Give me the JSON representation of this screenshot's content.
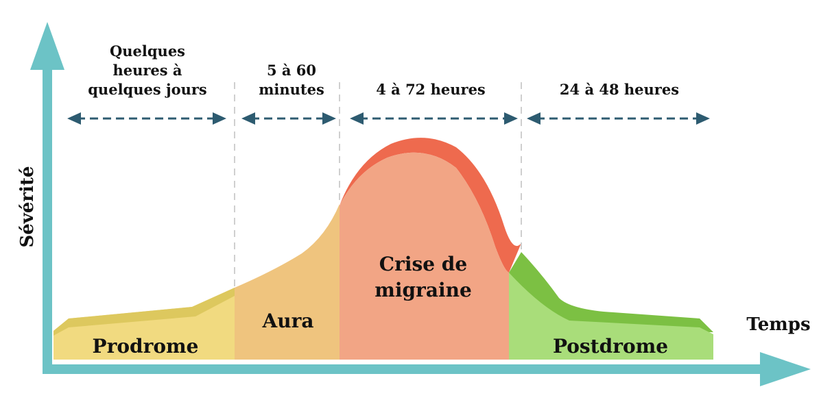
{
  "axes": {
    "y": "Sévérité",
    "x": "Temps"
  },
  "phases": [
    {
      "name": [
        "Prodrome"
      ],
      "duration": [
        "Quelques",
        "heures à",
        "quelques jours"
      ]
    },
    {
      "name": [
        "Aura"
      ],
      "duration": [
        "5 à 60",
        "minutes"
      ]
    },
    {
      "name": [
        "Crise de",
        "migraine"
      ],
      "duration": [
        "4 à 72 heures"
      ]
    },
    {
      "name": [
        "Postdrome"
      ],
      "duration": [
        "24 à 48 heures"
      ]
    }
  ]
}
